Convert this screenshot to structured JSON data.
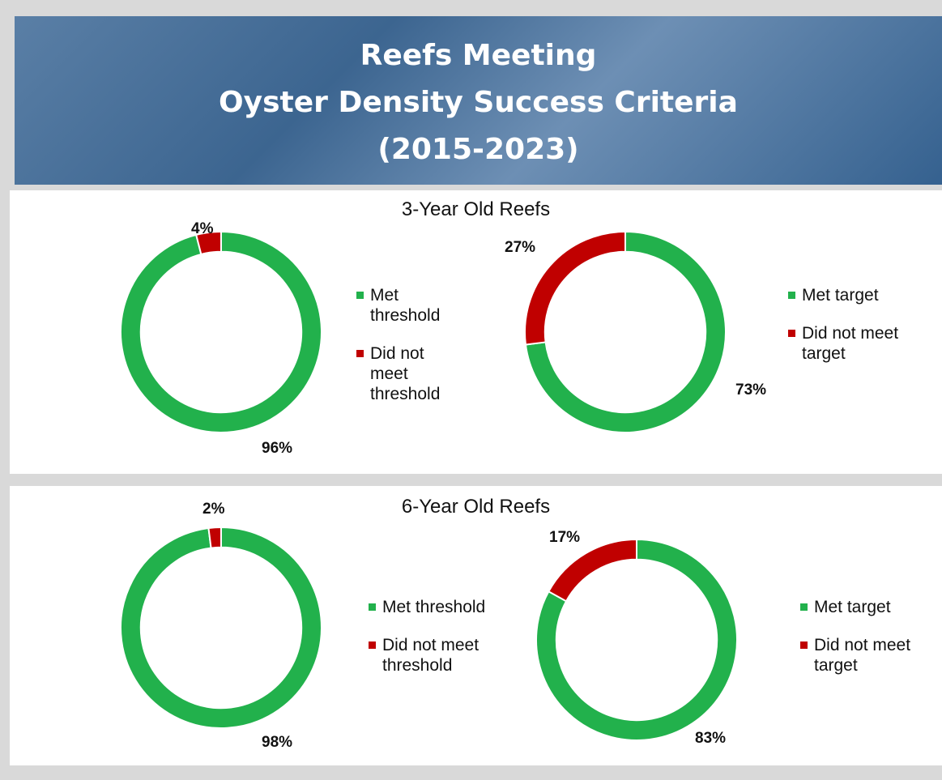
{
  "header": {
    "title_lines": [
      "Reefs Meeting",
      "Oyster Density Success Criteria",
      "(2015-2023)"
    ]
  },
  "panels": [
    {
      "title": "3-Year Old Reefs"
    },
    {
      "title": "6-Year Old Reefs"
    }
  ],
  "chart_data": [
    {
      "type": "donut",
      "categories": [
        "Met threshold",
        "Did not meet threshold"
      ],
      "values": [
        96,
        4
      ],
      "value_labels": [
        "96%",
        "4%"
      ],
      "colors": [
        "#22b14c",
        "#c00000"
      ]
    },
    {
      "type": "donut",
      "categories": [
        "Met target",
        "Did not meet target"
      ],
      "values": [
        73,
        27
      ],
      "value_labels": [
        "73%",
        "27%"
      ],
      "colors": [
        "#22b14c",
        "#c00000"
      ]
    },
    {
      "type": "donut",
      "categories": [
        "Met threshold",
        "Did not meet threshold"
      ],
      "values": [
        98,
        2
      ],
      "value_labels": [
        "98%",
        "2%"
      ],
      "colors": [
        "#22b14c",
        "#c00000"
      ]
    },
    {
      "type": "donut",
      "categories": [
        "Met target",
        "Did not meet target"
      ],
      "values": [
        83,
        17
      ],
      "value_labels": [
        "83%",
        "17%"
      ],
      "colors": [
        "#22b14c",
        "#c00000"
      ]
    }
  ]
}
